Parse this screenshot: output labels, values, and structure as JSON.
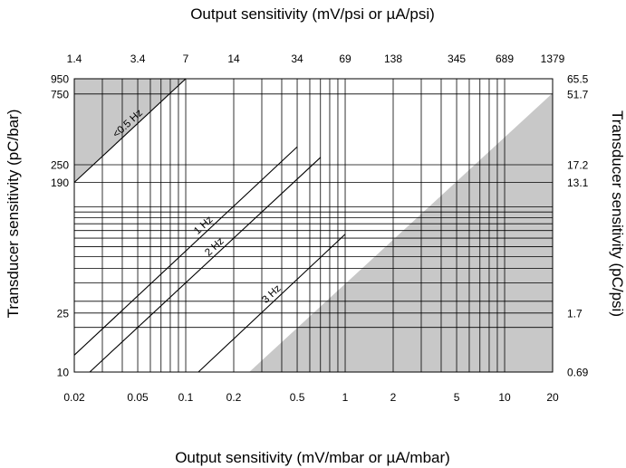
{
  "chart_data": {
    "type": "line",
    "scale": "log-log",
    "grid": true,
    "titles": {
      "top": "Output sensitivity (mV/psi or µA/psi)",
      "bottom": "Output sensitivity (mV/mbar or µA/mbar)",
      "left": "Transducer sensitivity (pC/bar)",
      "right": "Transducer sensitivity (pC/psi)"
    },
    "x_bottom": {
      "range": [
        0.02,
        20
      ],
      "ticks": [
        {
          "v": 0.02,
          "label": "0.02"
        },
        {
          "v": 0.05,
          "label": "0.05"
        },
        {
          "v": 0.1,
          "label": "0.1"
        },
        {
          "v": 0.2,
          "label": "0.2"
        },
        {
          "v": 0.5,
          "label": "0.5"
        },
        {
          "v": 1,
          "label": "1"
        },
        {
          "v": 2,
          "label": "2"
        },
        {
          "v": 5,
          "label": "5"
        },
        {
          "v": 10,
          "label": "10"
        },
        {
          "v": 20,
          "label": "20"
        }
      ]
    },
    "x_top": {
      "ticks": [
        {
          "v": 0.02,
          "label": "1.4"
        },
        {
          "v": 0.05,
          "label": "3.4"
        },
        {
          "v": 0.1,
          "label": "7"
        },
        {
          "v": 0.2,
          "label": "14"
        },
        {
          "v": 0.5,
          "label": "34"
        },
        {
          "v": 1,
          "label": "69"
        },
        {
          "v": 2,
          "label": "138"
        },
        {
          "v": 5,
          "label": "345"
        },
        {
          "v": 10,
          "label": "689"
        },
        {
          "v": 20,
          "label": "1379"
        }
      ]
    },
    "y_left": {
      "range": [
        10,
        950
      ],
      "ticks": [
        {
          "v": 10,
          "label": "10"
        },
        {
          "v": 25,
          "label": "25"
        },
        {
          "v": 190,
          "label": "190"
        },
        {
          "v": 250,
          "label": "250"
        },
        {
          "v": 750,
          "label": "750"
        },
        {
          "v": 950,
          "label": "950"
        }
      ]
    },
    "y_right": {
      "ticks": [
        {
          "v": 10,
          "label": "0.69"
        },
        {
          "v": 25,
          "label": "1.7"
        },
        {
          "v": 190,
          "label": "13.1"
        },
        {
          "v": 250,
          "label": "17.2"
        },
        {
          "v": 750,
          "label": "51.7"
        },
        {
          "v": 950,
          "label": "65.5"
        }
      ]
    },
    "grid_x": [
      0.02,
      0.03,
      0.04,
      0.05,
      0.06,
      0.07,
      0.08,
      0.09,
      0.1,
      0.2,
      0.3,
      0.4,
      0.5,
      0.6,
      0.7,
      0.8,
      0.9,
      1,
      2,
      3,
      4,
      5,
      6,
      7,
      8,
      9,
      10,
      20
    ],
    "grid_y": [
      10,
      20,
      25,
      30,
      40,
      50,
      60,
      70,
      80,
      90,
      100,
      110,
      120,
      130,
      190,
      250,
      750,
      950
    ],
    "series": [
      {
        "name": "<0.5 Hz",
        "points": [
          [
            0.02,
            190
          ],
          [
            0.1,
            950
          ]
        ]
      },
      {
        "name": "1 Hz",
        "points": [
          [
            0.02,
            13
          ],
          [
            0.5,
            330
          ]
        ]
      },
      {
        "name": "2 Hz",
        "points": [
          [
            0.025,
            10
          ],
          [
            0.7,
            280
          ]
        ]
      },
      {
        "name": "3 Hz",
        "points": [
          [
            0.12,
            10
          ],
          [
            1.0,
            85
          ]
        ]
      }
    ],
    "shaded_regions": [
      {
        "name": "upper-left",
        "polygon": [
          [
            0.02,
            190
          ],
          [
            0.1,
            950
          ],
          [
            0.02,
            950
          ]
        ]
      },
      {
        "name": "lower-right",
        "polygon": [
          [
            0.25,
            10
          ],
          [
            20,
            760
          ],
          [
            20,
            10
          ]
        ]
      }
    ],
    "colors": {
      "shade": "#c8c8c8",
      "line": "#000000",
      "grid": "#000000"
    }
  }
}
